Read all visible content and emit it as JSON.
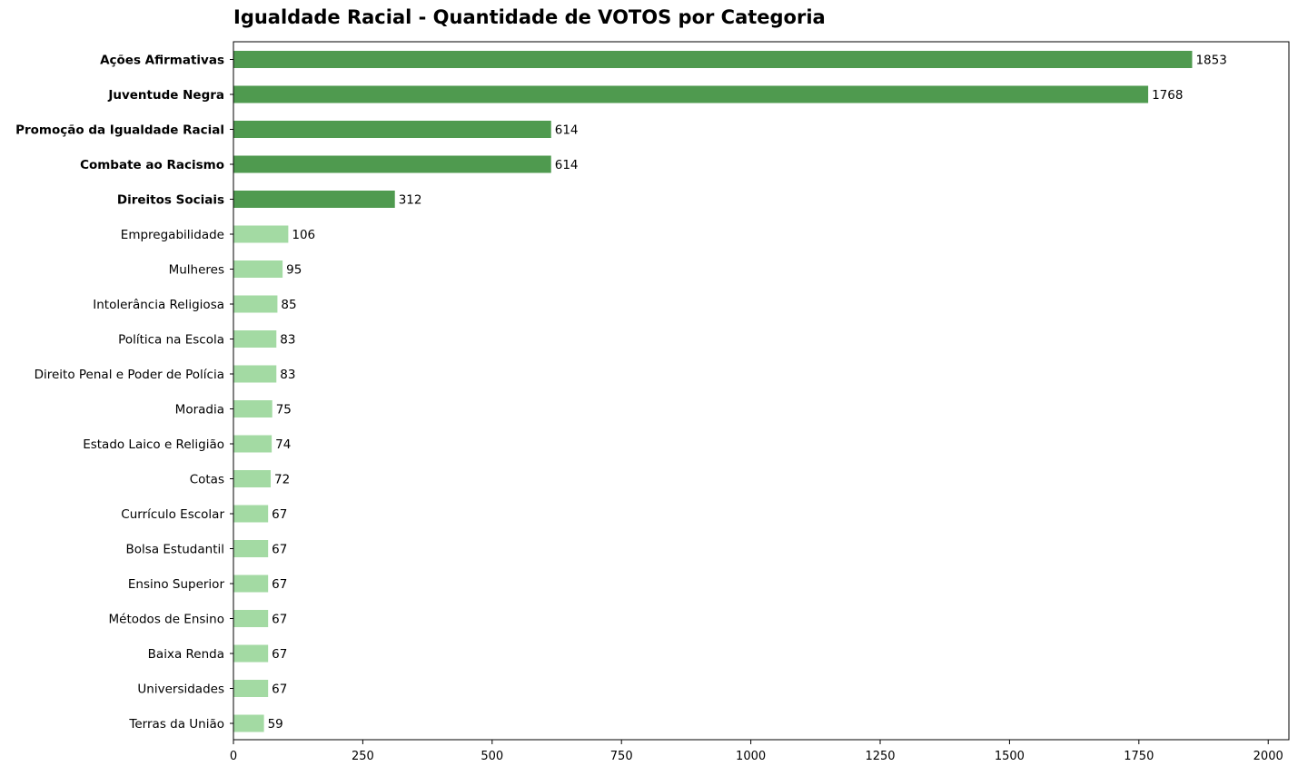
{
  "chart_data": {
    "type": "bar",
    "orientation": "horizontal",
    "title": "Igualdade Racial - Quantidade de VOTOS por Categoria",
    "xlabel": "",
    "ylabel": "",
    "xlim": [
      0,
      2040
    ],
    "x_ticks": [
      0,
      250,
      500,
      750,
      1000,
      1250,
      1500,
      1750,
      2000
    ],
    "x_tick_labels": [
      "0",
      "250",
      "500",
      "750",
      "1000",
      "1250",
      "1500",
      "1750",
      "2000"
    ],
    "grid": false,
    "highlight_top_n": 5,
    "colors": {
      "highlight": "#4f9a4f",
      "normal": "#a3daa3"
    },
    "categories": [
      "Ações Afirmativas",
      "Juventude Negra",
      "Promoção da Igualdade Racial",
      "Combate ao Racismo",
      "Direitos Sociais",
      "Empregabilidade",
      "Mulheres",
      "Intolerância Religiosa",
      "Política na Escola",
      "Direito Penal e Poder de Polícia",
      "Moradia",
      "Estado Laico e Religião",
      "Cotas",
      "Currículo Escolar",
      "Bolsa Estudantil",
      "Ensino Superior",
      "Métodos de Ensino",
      "Baixa Renda",
      "Universidades",
      "Terras da União"
    ],
    "values": [
      1853,
      1768,
      614,
      614,
      312,
      106,
      95,
      85,
      83,
      83,
      75,
      74,
      72,
      67,
      67,
      67,
      67,
      67,
      67,
      59
    ]
  }
}
